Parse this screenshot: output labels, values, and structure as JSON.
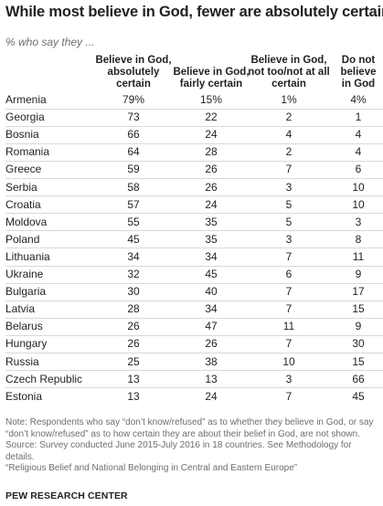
{
  "title": "While most believe in God, fewer are absolutely certain",
  "subtitle": "% who say they ...",
  "columns": [
    "Believe in God, absolutely certain",
    "Believe in God, fairly certain",
    "Believe in God, not too/not at all certain",
    "Do not believe in God"
  ],
  "chart_data": {
    "type": "table",
    "title": "While most believe in God, fewer are absolutely certain",
    "subtitle": "% who say they ...",
    "columns": [
      "Believe in God, absolutely certain",
      "Believe in God, fairly certain",
      "Believe in God, not too/not at all certain",
      "Do not believe in God"
    ],
    "rows": [
      {
        "country": "Armenia",
        "values": [
          "79%",
          "15%",
          "1%",
          "4%"
        ]
      },
      {
        "country": "Georgia",
        "values": [
          "73",
          "22",
          "2",
          "1"
        ]
      },
      {
        "country": "Bosnia",
        "values": [
          "66",
          "24",
          "4",
          "4"
        ]
      },
      {
        "country": "Romania",
        "values": [
          "64",
          "28",
          "2",
          "4"
        ]
      },
      {
        "country": "Greece",
        "values": [
          "59",
          "26",
          "7",
          "6"
        ]
      },
      {
        "country": "Serbia",
        "values": [
          "58",
          "26",
          "3",
          "10"
        ]
      },
      {
        "country": "Croatia",
        "values": [
          "57",
          "24",
          "5",
          "10"
        ]
      },
      {
        "country": "Moldova",
        "values": [
          "55",
          "35",
          "5",
          "3"
        ]
      },
      {
        "country": "Poland",
        "values": [
          "45",
          "35",
          "3",
          "8"
        ]
      },
      {
        "country": "Lithuania",
        "values": [
          "34",
          "34",
          "7",
          "11"
        ]
      },
      {
        "country": "Ukraine",
        "values": [
          "32",
          "45",
          "6",
          "9"
        ]
      },
      {
        "country": "Bulgaria",
        "values": [
          "30",
          "40",
          "7",
          "17"
        ]
      },
      {
        "country": "Latvia",
        "values": [
          "28",
          "34",
          "7",
          "15"
        ]
      },
      {
        "country": "Belarus",
        "values": [
          "26",
          "47",
          "11",
          "9"
        ]
      },
      {
        "country": "Hungary",
        "values": [
          "26",
          "26",
          "7",
          "30"
        ]
      },
      {
        "country": "Russia",
        "values": [
          "25",
          "38",
          "10",
          "15"
        ]
      },
      {
        "country": "Czech Republic",
        "values": [
          "13",
          "13",
          "3",
          "66"
        ]
      },
      {
        "country": "Estonia",
        "values": [
          "13",
          "24",
          "7",
          "45"
        ]
      }
    ]
  },
  "note": "Note: Respondents who say “don’t know/refused” as to whether they believe in God, or say “don’t know/refused” as to how certain they are about their belief in God, are not shown.",
  "source": "Source: Survey conducted June 2015-July 2016 in 18 countries. See Methodology for details.",
  "report": "“Religious Belief and National Belonging in Central and Eastern Europe”",
  "footer": "PEW RESEARCH CENTER"
}
